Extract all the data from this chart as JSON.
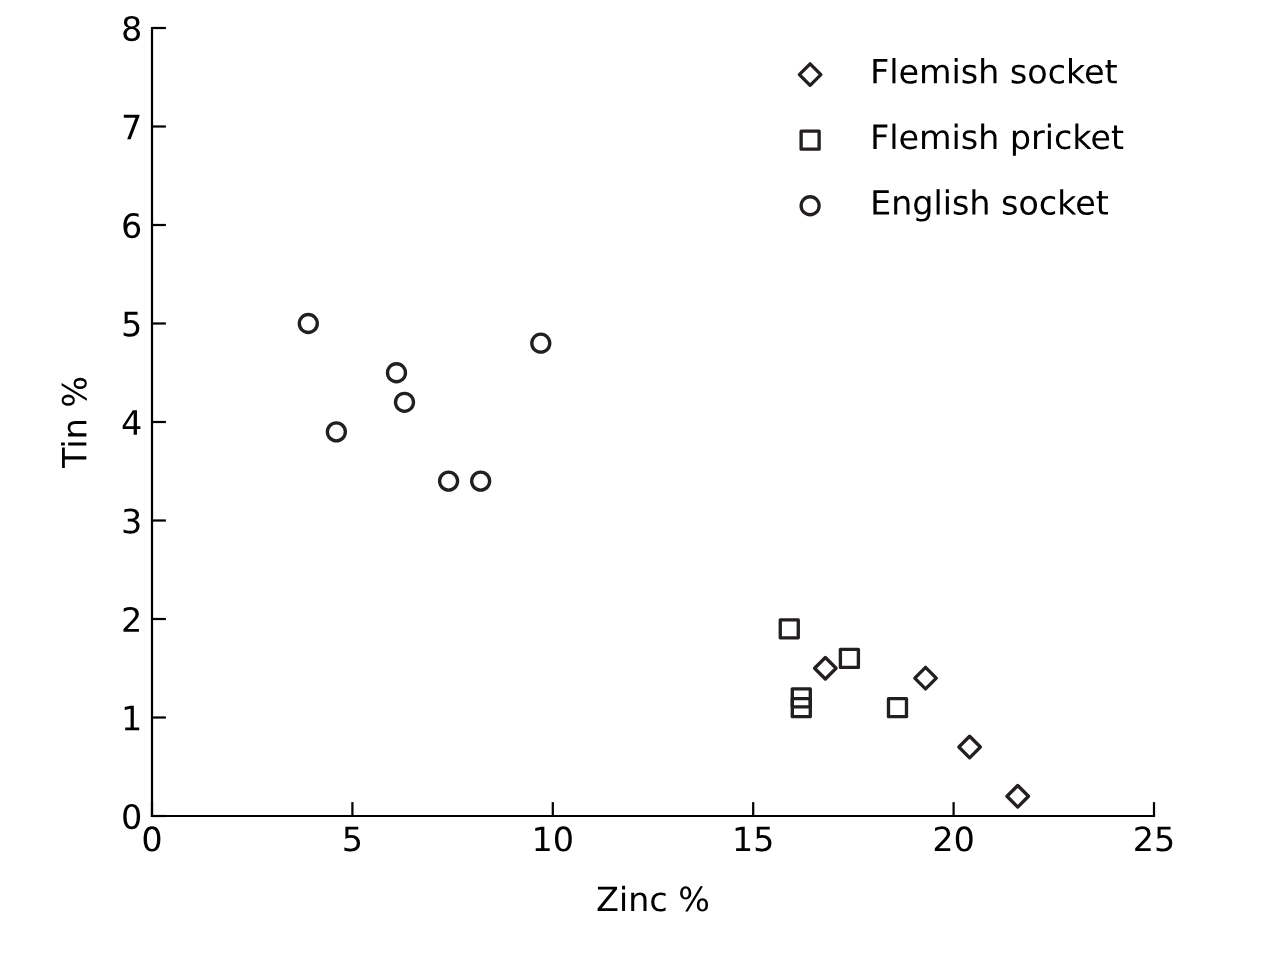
{
  "chart_data": {
    "type": "scatter",
    "xlabel": "Zinc %",
    "ylabel": "Tin %",
    "xlim": [
      0,
      25
    ],
    "ylim": [
      0,
      8
    ],
    "xticks": [
      0,
      5,
      10,
      15,
      20,
      25
    ],
    "yticks": [
      0,
      1,
      2,
      3,
      4,
      5,
      6,
      7,
      8
    ],
    "grid": false,
    "legend": "top right",
    "series": [
      {
        "name": "Flemish socket",
        "color": "#231f20",
        "marker": "diamond",
        "x": [
          16.8,
          19.3,
          20.4,
          21.6
        ],
        "values": [
          1.5,
          1.4,
          0.7,
          0.2
        ]
      },
      {
        "name": "Flemish pricket",
        "color": "#231f20",
        "marker": "square",
        "x": [
          15.9,
          16.2,
          16.2,
          17.4,
          18.6
        ],
        "values": [
          1.9,
          1.2,
          1.1,
          1.6,
          1.1
        ]
      },
      {
        "name": "English socket",
        "color": "#231f20",
        "marker": "circle",
        "x": [
          3.9,
          4.6,
          6.1,
          6.3,
          7.4,
          8.2,
          9.7
        ],
        "values": [
          5.0,
          3.9,
          4.5,
          4.2,
          3.4,
          3.4,
          4.8
        ]
      }
    ]
  }
}
